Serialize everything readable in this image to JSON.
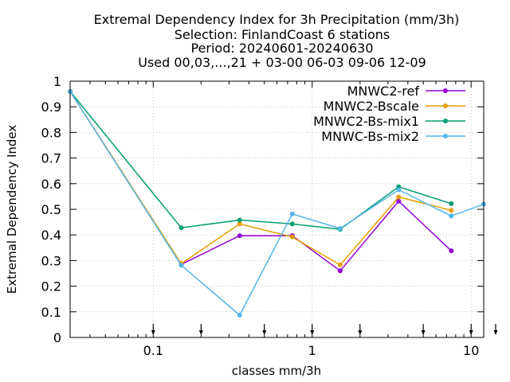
{
  "chart_data": {
    "type": "line",
    "title_lines": [
      "Extremal Dependency Index  for 3h Precipitation (mm/3h)",
      "Selection: FinlandCoast      6 stations",
      "Period: 20240601-20240630",
      "Used 00,03,...,21 + 03-00 06-03 09-06 12-09"
    ],
    "xlabel": "classes mm/3h",
    "ylabel": "Extremal Dependency Index",
    "x_scale": "log",
    "xlim": [
      0.03,
      12
    ],
    "ylim": [
      0,
      1
    ],
    "x_ticks": [
      {
        "value": 0.1,
        "label": "0.1"
      },
      {
        "value": 1,
        "label": "1"
      },
      {
        "value": 10,
        "label": "10"
      }
    ],
    "x_grid": [
      0.1,
      1,
      10
    ],
    "y_ticks": [
      {
        "value": 0,
        "label": "0"
      },
      {
        "value": 0.1,
        "label": "0.1"
      },
      {
        "value": 0.2,
        "label": "0.2"
      },
      {
        "value": 0.3,
        "label": "0.3"
      },
      {
        "value": 0.4,
        "label": "0.4"
      },
      {
        "value": 0.5,
        "label": "0.5"
      },
      {
        "value": 0.6,
        "label": "0.6"
      },
      {
        "value": 0.7,
        "label": "0.7"
      },
      {
        "value": 0.8,
        "label": "0.8"
      },
      {
        "value": 0.9,
        "label": "0.9"
      },
      {
        "value": 1,
        "label": "1"
      }
    ],
    "threshold_markers": [
      0.1,
      0.2,
      0.5,
      1,
      2,
      5,
      10,
      15
    ],
    "grid": true,
    "legend_position": "top-right",
    "series": [
      {
        "name": "MNWC2-ref",
        "color": "#9400d3",
        "points": [
          [
            0.03,
            0.96
          ],
          [
            0.15,
            0.285
          ],
          [
            0.35,
            0.397
          ],
          [
            0.75,
            0.397
          ],
          [
            1.5,
            0.26
          ],
          [
            3.5,
            0.532
          ],
          [
            7.5,
            0.338
          ]
        ]
      },
      {
        "name": "MNWC2-Bscale",
        "color": "#e69f00",
        "points": [
          [
            0.03,
            0.96
          ],
          [
            0.15,
            0.288
          ],
          [
            0.35,
            0.443
          ],
          [
            0.75,
            0.392
          ],
          [
            1.5,
            0.283
          ],
          [
            3.5,
            0.548
          ],
          [
            7.5,
            0.496
          ]
        ]
      },
      {
        "name": "MNWC2-Bs-mix1",
        "color": "#009e73",
        "points": [
          [
            0.03,
            0.96
          ],
          [
            0.15,
            0.428
          ],
          [
            0.35,
            0.458
          ],
          [
            0.75,
            0.443
          ],
          [
            1.5,
            0.422
          ],
          [
            3.5,
            0.588
          ],
          [
            7.5,
            0.522
          ]
        ]
      },
      {
        "name": "MNWC-Bs-mix2",
        "color": "#56b4e9",
        "points": [
          [
            0.03,
            0.96
          ],
          [
            0.15,
            0.282
          ],
          [
            0.35,
            0.087
          ],
          [
            0.75,
            0.482
          ],
          [
            1.5,
            0.425
          ],
          [
            3.5,
            0.576
          ],
          [
            7.5,
            0.474
          ],
          [
            12,
            0.52
          ]
        ]
      }
    ]
  }
}
